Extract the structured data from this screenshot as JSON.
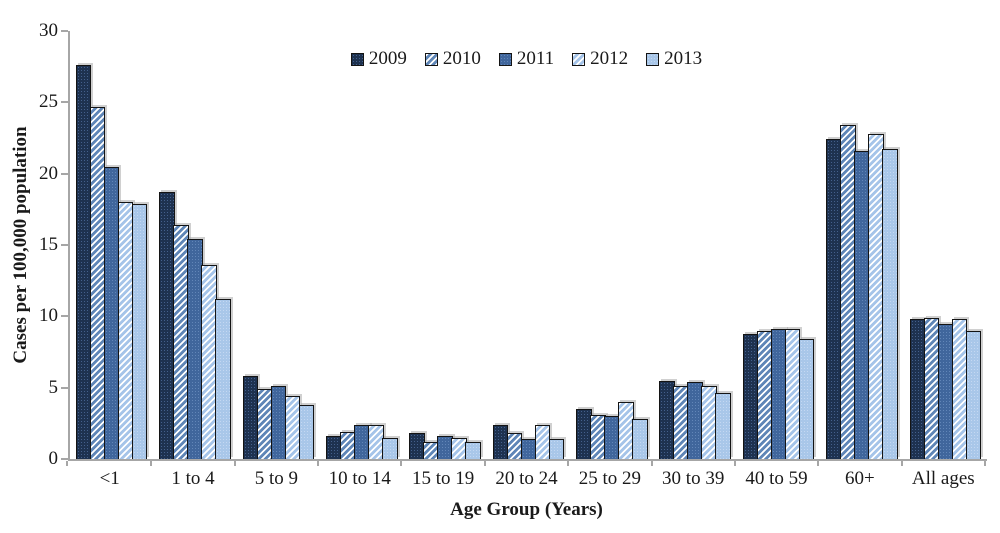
{
  "chart_data": {
    "type": "bar",
    "title": "",
    "categories": [
      "<1",
      "1 to 4",
      "5 to 9",
      "10 to 14",
      "15 to 19",
      "20 to 24",
      "25 to 29",
      "30 to 39",
      "40 to 59",
      "60+",
      "All ages"
    ],
    "series": [
      {
        "name": "2009",
        "pattern": "p2009",
        "values": [
          27.6,
          18.7,
          5.8,
          1.6,
          1.8,
          2.4,
          3.5,
          5.5,
          8.8,
          22.4,
          9.8
        ]
      },
      {
        "name": "2010",
        "pattern": "p2010",
        "values": [
          24.7,
          16.4,
          4.9,
          1.9,
          1.2,
          1.8,
          3.1,
          5.1,
          9.0,
          23.4,
          9.9
        ]
      },
      {
        "name": "2011",
        "pattern": "p2011",
        "values": [
          20.5,
          15.4,
          5.1,
          2.4,
          1.6,
          1.4,
          3.0,
          5.4,
          9.1,
          21.6,
          9.5
        ]
      },
      {
        "name": "2012",
        "pattern": "p2012",
        "values": [
          18.0,
          13.6,
          4.4,
          2.4,
          1.5,
          2.4,
          4.0,
          5.1,
          9.1,
          22.8,
          9.8
        ]
      },
      {
        "name": "2013",
        "pattern": "p2013",
        "values": [
          17.9,
          11.2,
          3.8,
          1.5,
          1.2,
          1.4,
          2.8,
          4.6,
          8.4,
          21.7,
          9.0
        ]
      }
    ],
    "xlabel": "Age Group (Years)",
    "ylabel": "Cases per 100,000 population",
    "ylim": [
      0,
      30
    ],
    "y_ticks": [
      0,
      5,
      10,
      15,
      20,
      25,
      30
    ],
    "legend_position": "top-center",
    "grid": false
  },
  "colors": {
    "series_2009_base": "#1E3250",
    "series_2010_stripe": "#5F86B7",
    "series_2011_base": "#40669C",
    "series_2012_stripe": "#A5C4E9",
    "series_2013_base": "#A9C7E9",
    "axis_line": "#A6A6A6",
    "bar_outline": "#141414",
    "text": "#1a1a1a"
  }
}
